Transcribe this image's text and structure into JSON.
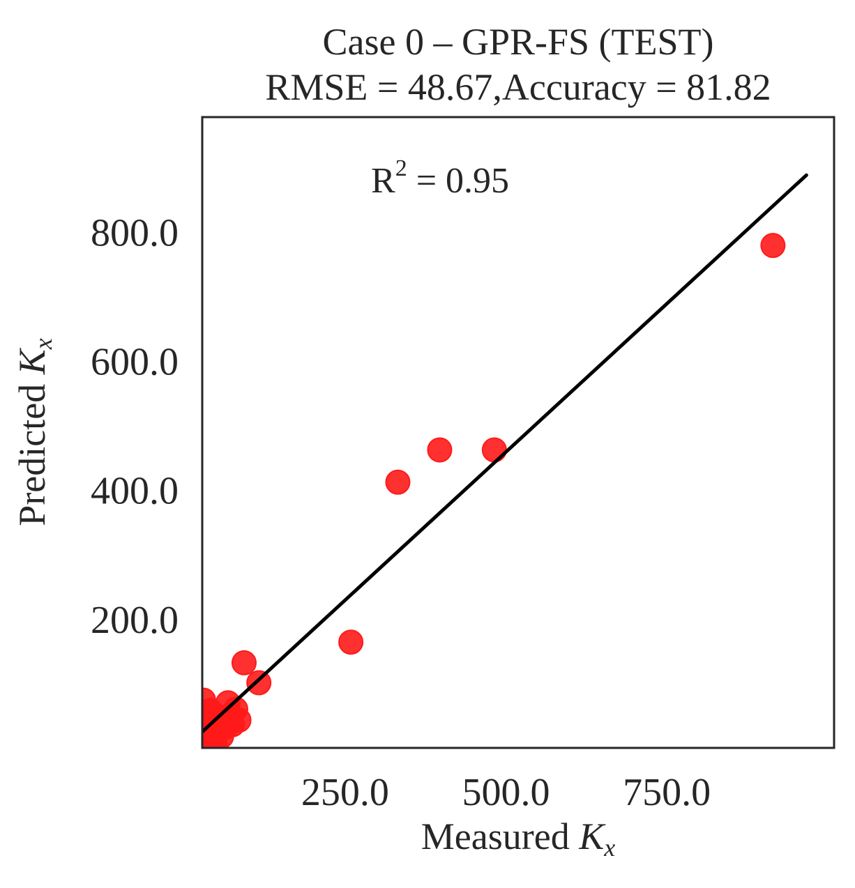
{
  "chart_data": {
    "type": "scatter",
    "title": "Case 0 – GPR-FS (TEST)",
    "subtitle": "RMSE = 48.67,Accuracy = 81.82",
    "xlabel_text": "Measured ",
    "xlabel_var": "K",
    "xlabel_sub": "x",
    "ylabel_text": "Predicted ",
    "ylabel_var": "K",
    "ylabel_sub": "x",
    "annotation": {
      "label": "R",
      "sup": "2",
      "value": " = 0.95"
    },
    "xlim": [
      28,
      1010
    ],
    "ylim": [
      2,
      980
    ],
    "x_ticks": [
      250,
      500,
      750
    ],
    "x_tick_labels": [
      "250.0",
      "500.0",
      "750.0"
    ],
    "y_ticks": [
      200,
      400,
      600,
      800
    ],
    "y_tick_labels": [
      "200.0",
      "400.0",
      "600.0",
      "800.0"
    ],
    "grid": false,
    "points": [
      {
        "x": 30,
        "y": 76
      },
      {
        "x": 30,
        "y": 52
      },
      {
        "x": 32,
        "y": 34
      },
      {
        "x": 35,
        "y": 18
      },
      {
        "x": 38,
        "y": 12
      },
      {
        "x": 40,
        "y": 60
      },
      {
        "x": 42,
        "y": 40
      },
      {
        "x": 45,
        "y": 25
      },
      {
        "x": 48,
        "y": 8
      },
      {
        "x": 50,
        "y": 30
      },
      {
        "x": 55,
        "y": 50
      },
      {
        "x": 58,
        "y": 20
      },
      {
        "x": 60,
        "y": 45
      },
      {
        "x": 65,
        "y": 34
      },
      {
        "x": 68,
        "y": 72
      },
      {
        "x": 72,
        "y": 52
      },
      {
        "x": 75,
        "y": 38
      },
      {
        "x": 80,
        "y": 62
      },
      {
        "x": 85,
        "y": 45
      },
      {
        "x": 93,
        "y": 134
      },
      {
        "x": 116,
        "y": 103
      },
      {
        "x": 259,
        "y": 166
      },
      {
        "x": 332,
        "y": 414
      },
      {
        "x": 397,
        "y": 464
      },
      {
        "x": 482,
        "y": 464
      },
      {
        "x": 915,
        "y": 781
      }
    ],
    "fit_line": {
      "x": [
        28,
        967
      ],
      "y": [
        27,
        890
      ]
    },
    "point_color": "#ff1a1a",
    "line_color": "#000000",
    "axis_color": "#262626"
  }
}
